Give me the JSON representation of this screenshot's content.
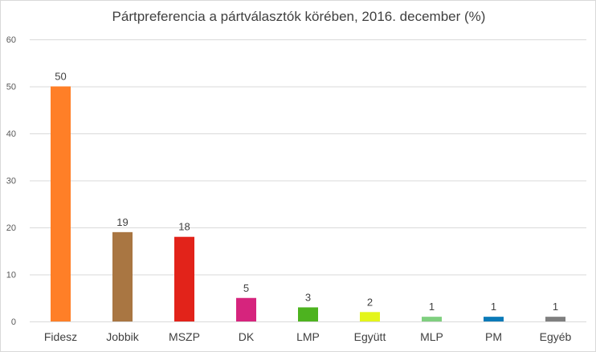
{
  "chart_data": {
    "type": "bar",
    "title": "Pártpreferencia a pártválasztók körében, 2016. december (%)",
    "xlabel": "",
    "ylabel": "",
    "categories": [
      "Fidesz",
      "Jobbik",
      "MSZP",
      "DK",
      "LMP",
      "Együtt",
      "MLP",
      "PM",
      "Egyéb"
    ],
    "values": [
      50,
      19,
      18,
      5,
      3,
      2,
      1,
      1,
      1
    ],
    "colors": [
      "#ff7f27",
      "#a97642",
      "#e2231a",
      "#d6247d",
      "#4db31f",
      "#e4f51a",
      "#7fcf7f",
      "#0a7ab8",
      "#7f7f7f"
    ],
    "ylim": [
      0,
      60
    ],
    "yticks": [
      0,
      10,
      20,
      30,
      40,
      50,
      60
    ],
    "grid": true,
    "legend": "none",
    "gridline_color": "#d9d9d9"
  }
}
